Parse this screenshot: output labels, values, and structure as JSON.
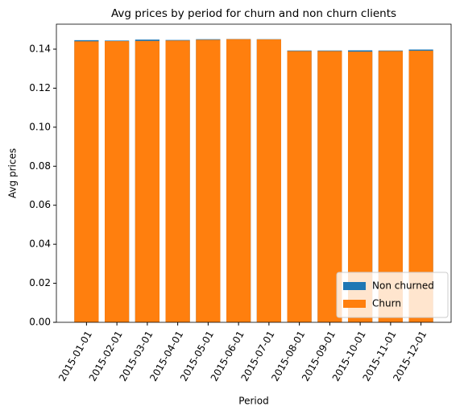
{
  "chart_data": {
    "type": "bar",
    "bar_mode": "overlay",
    "title": "Avg prices by period for churn and non churn clients",
    "x_label": "Period",
    "y_label": "Avg prices",
    "categories": [
      "2015-01-01",
      "2015-02-01",
      "2015-03-01",
      "2015-04-01",
      "2015-05-01",
      "2015-06-01",
      "2015-07-01",
      "2015-08-01",
      "2015-09-01",
      "2015-10-01",
      "2015-11-01",
      "2015-12-01"
    ],
    "series": [
      {
        "name": "Non churned",
        "color": "#1f77b4",
        "values": [
          0.1446,
          0.1444,
          0.1449,
          0.1447,
          0.1451,
          0.1452,
          0.1451,
          0.1393,
          0.1393,
          0.1394,
          0.1393,
          0.1398
        ]
      },
      {
        "name": "Churn",
        "color": "#ff7f0e",
        "values": [
          0.144,
          0.1441,
          0.1442,
          0.1444,
          0.1448,
          0.1451,
          0.145,
          0.139,
          0.139,
          0.1387,
          0.139,
          0.1392
        ]
      }
    ],
    "ylim": [
      0,
      0.1528
    ],
    "yticks": [
      {
        "value": 0,
        "label": "0.00"
      },
      {
        "value": 0.02,
        "label": "0.02"
      },
      {
        "value": 0.04,
        "label": "0.04"
      },
      {
        "value": 0.06,
        "label": "0.06"
      },
      {
        "value": 0.08,
        "label": "0.08"
      },
      {
        "value": 0.1,
        "label": "0.10"
      },
      {
        "value": 0.12,
        "label": "0.12"
      },
      {
        "value": 0.14,
        "label": "0.14"
      }
    ],
    "legend": "lower right"
  }
}
